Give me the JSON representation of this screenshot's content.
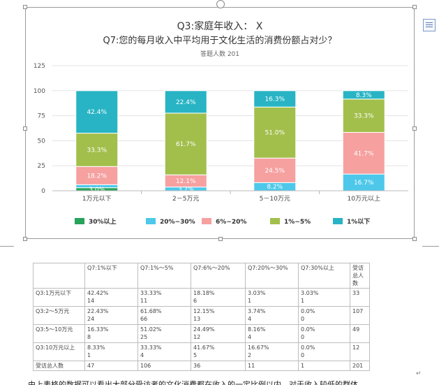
{
  "chart_data": {
    "type": "stacked-bar",
    "title": "Q3:家庭年收入： X",
    "subtitle": "Q7:您的每月收入中平均用于文化生活的消费份额占对少？",
    "caption": "答题人数 201",
    "categories": [
      "1万元以下",
      "2－5万元",
      "5－10万元",
      "10万元以上"
    ],
    "ylim": [
      0,
      125
    ],
    "yticks": [
      0,
      25,
      50,
      75,
      100,
      125
    ],
    "legend_position": "bottom",
    "series": [
      {
        "name": "30%以上",
        "color": "#27a35a",
        "values": [
          3.03,
          0.0,
          0.0,
          0.0
        ],
        "labels": [
          "3.0%",
          "",
          "",
          ""
        ]
      },
      {
        "name": "20%~30%",
        "color": "#4dc8ea",
        "values": [
          3.03,
          3.74,
          8.16,
          16.67
        ],
        "labels": [
          "",
          "3.7%",
          "8.2%",
          "16.7%"
        ]
      },
      {
        "name": "6%~20%",
        "color": "#f6a0a0",
        "values": [
          18.18,
          12.15,
          24.49,
          41.67
        ],
        "labels": [
          "18.2%",
          "12.1%",
          "24.5%",
          "41.7%"
        ]
      },
      {
        "name": "1%~5%",
        "color": "#a2bf4c",
        "values": [
          33.33,
          61.68,
          51.02,
          33.33
        ],
        "labels": [
          "33.3%",
          "61.7%",
          "51.0%",
          "33.3%"
        ]
      },
      {
        "name": "1%以下",
        "color": "#28b4c4",
        "values": [
          42.42,
          22.43,
          16.33,
          8.33
        ],
        "labels": [
          "42.4%",
          "22.4%",
          "16.3%",
          "8.3%"
        ]
      }
    ]
  },
  "table": {
    "headers": [
      "",
      "Q7:1%以下",
      "Q7:1%～5%",
      "Q7:6%～20%",
      "Q7:20%～30%",
      "Q7:30%以上",
      "受访总人数"
    ],
    "rows": [
      {
        "label": "Q3:1万元以下",
        "cells": [
          [
            "42.42%",
            "14"
          ],
          [
            "33.33%",
            "11"
          ],
          [
            "18.18%",
            "6"
          ],
          [
            "3.03%",
            "1"
          ],
          [
            "3.03%",
            "1"
          ]
        ],
        "total": "33"
      },
      {
        "label": "Q3:2～5万元",
        "cells": [
          [
            "22.43%",
            "24"
          ],
          [
            "61.68%",
            "66"
          ],
          [
            "12.15%",
            "13"
          ],
          [
            "3.74%",
            "4"
          ],
          [
            "0.0%",
            "0"
          ]
        ],
        "total": "107"
      },
      {
        "label": "Q3:5～10万元",
        "cells": [
          [
            "16.33%",
            "8"
          ],
          [
            "51.02%",
            "25"
          ],
          [
            "24.49%",
            "12"
          ],
          [
            "8.16%",
            "4"
          ],
          [
            "0.0%",
            "0"
          ]
        ],
        "total": "49"
      },
      {
        "label": "Q3:10万元以上",
        "cells": [
          [
            "8.33%",
            "1"
          ],
          [
            "33.33%",
            "4"
          ],
          [
            "41.67%",
            "5"
          ],
          [
            "16.67%",
            "2"
          ],
          [
            "0.0%",
            "0"
          ]
        ],
        "total": "12"
      }
    ],
    "total_row": [
      "受访总人数",
      "47",
      "106",
      "36",
      "11",
      "1",
      "201"
    ]
  },
  "return_mark": "↵",
  "bottom_text": "由上表格的数据可以看出大部分受访者的文化消费都在收入的一定比例以内，对于收入较低的群体"
}
